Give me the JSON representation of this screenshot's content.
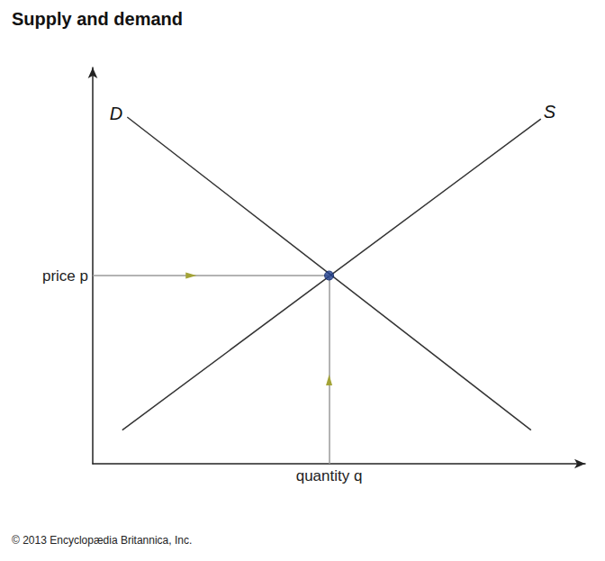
{
  "chart_data": {
    "type": "line",
    "title": "Supply and demand",
    "credit": "© 2013 Encyclopædia Britannica, Inc.",
    "series": [
      {
        "name": "D",
        "color": "#333333",
        "x": [
          0.7,
          8.9
        ],
        "values": [
          8.75,
          0.85
        ]
      },
      {
        "name": "S",
        "color": "#333333",
        "x": [
          0.6,
          9.1
        ],
        "values": [
          0.85,
          8.7
        ]
      }
    ],
    "equilibrium": {
      "x": 4.8,
      "y": 4.75,
      "color": "#1f3f8f"
    },
    "annotations": {
      "price": "price p",
      "quantity": "quantity q"
    },
    "xlim": [
      0,
      10
    ],
    "ylim": [
      0,
      10
    ],
    "grid": false,
    "tick_labels": false
  }
}
